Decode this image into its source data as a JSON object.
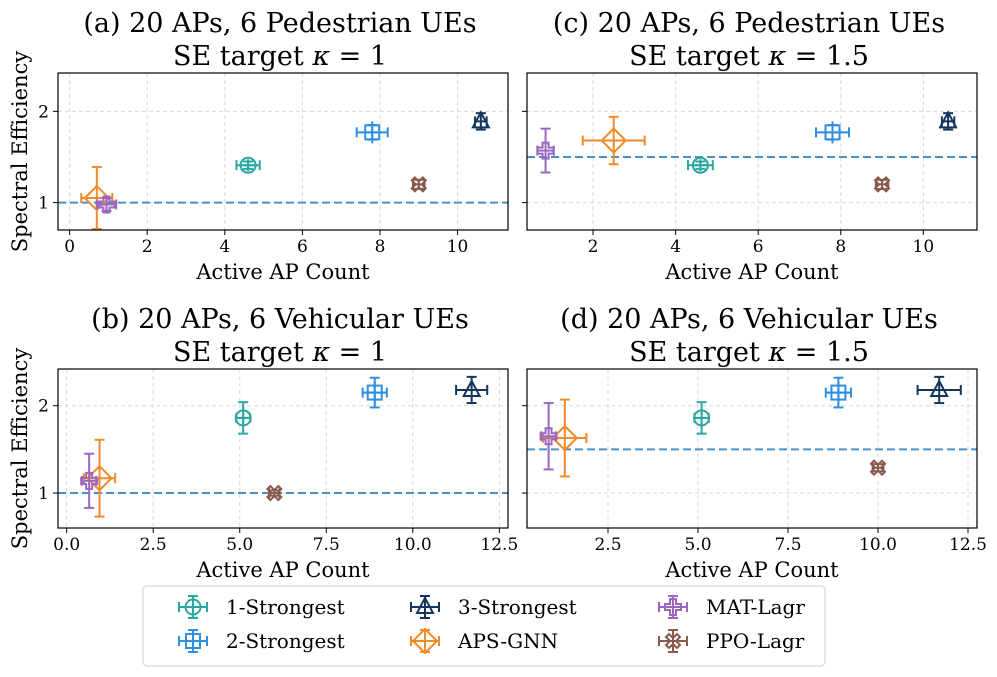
{
  "figure": {
    "legend": [
      {
        "name": "1-Strongest",
        "color": "#2ca6a0",
        "marker": "circle-plus-icon"
      },
      {
        "name": "2-Strongest",
        "color": "#2f8fe0",
        "marker": "square-plus-icon"
      },
      {
        "name": "3-Strongest",
        "color": "#14365e",
        "marker": "triangle-icon"
      },
      {
        "name": "APS-GNN",
        "color": "#f28a2a",
        "marker": "diamond-icon"
      },
      {
        "name": "MAT-Lagr",
        "color": "#9a68c0",
        "marker": "plus-icon"
      },
      {
        "name": "PPO-Lagr",
        "color": "#8b5a4e",
        "marker": "x-icon"
      }
    ]
  },
  "chart_data": [
    {
      "type": "scatter",
      "panel": "a",
      "title_line1": "(a) 20 APs, 6 Pedestrian UEs",
      "title_line2_prefix": "SE target ",
      "title_kappa": "κ",
      "title_line2_suffix": " = 1",
      "xlabel": "Active AP Count",
      "ylabel": "Spectral Efficiency",
      "xlim": [
        -0.3,
        11.3
      ],
      "ylim": [
        0.7,
        2.42
      ],
      "xticks": [
        0,
        2,
        4,
        6,
        8,
        10
      ],
      "xtick_labels": [
        "0",
        "2",
        "4",
        "6",
        "8",
        "10"
      ],
      "yticks": [
        1,
        2
      ],
      "ytick_labels": [
        "1",
        "2"
      ],
      "grid": true,
      "target": 1,
      "series": [
        {
          "name": "1-Strongest",
          "x": 4.6,
          "y": 1.41,
          "xerr": 0.3,
          "yerr": 0.04
        },
        {
          "name": "2-Strongest",
          "x": 7.8,
          "y": 1.77,
          "xerr": 0.4,
          "yerr": 0.08
        },
        {
          "name": "3-Strongest",
          "x": 10.6,
          "y": 1.89,
          "xerr": 0.15,
          "yerr": 0.09
        },
        {
          "name": "APS-GNN",
          "x": 0.7,
          "y": 1.05,
          "xerr": 0.4,
          "yerr": 0.34
        },
        {
          "name": "MAT-Lagr",
          "x": 0.95,
          "y": 0.98,
          "xerr": 0.25,
          "yerr": 0.07
        },
        {
          "name": "PPO-Lagr",
          "x": 9.0,
          "y": 1.2,
          "xerr": 0.15,
          "yerr": 0.05
        }
      ]
    },
    {
      "type": "scatter",
      "panel": "c",
      "title_line1": "(c) 20 APs, 6 Pedestrian UEs",
      "title_line2_prefix": "SE target ",
      "title_kappa": "κ",
      "title_line2_suffix": " = 1.5",
      "xlabel": "Active AP Count",
      "ylabel": "",
      "xlim": [
        0.4,
        11.3
      ],
      "ylim": [
        0.7,
        2.42
      ],
      "xticks": [
        2,
        4,
        6,
        8,
        10
      ],
      "xtick_labels": [
        "2",
        "4",
        "6",
        "8",
        "10"
      ],
      "yticks": [
        1,
        2
      ],
      "ytick_labels": [
        "",
        ""
      ],
      "grid": true,
      "target": 1.5,
      "series": [
        {
          "name": "1-Strongest",
          "x": 4.6,
          "y": 1.41,
          "xerr": 0.3,
          "yerr": 0.04
        },
        {
          "name": "2-Strongest",
          "x": 7.8,
          "y": 1.77,
          "xerr": 0.4,
          "yerr": 0.08
        },
        {
          "name": "3-Strongest",
          "x": 10.6,
          "y": 1.89,
          "xerr": 0.15,
          "yerr": 0.09
        },
        {
          "name": "APS-GNN",
          "x": 2.5,
          "y": 1.68,
          "xerr": 0.75,
          "yerr": 0.26
        },
        {
          "name": "MAT-Lagr",
          "x": 0.85,
          "y": 1.57,
          "xerr": 0.2,
          "yerr": 0.24
        },
        {
          "name": "PPO-Lagr",
          "x": 9.0,
          "y": 1.2,
          "xerr": 0.15,
          "yerr": 0.05
        }
      ]
    },
    {
      "type": "scatter",
      "panel": "b",
      "title_line1": "(b) 20 APs, 6 Vehicular UEs",
      "title_line2_prefix": "SE target ",
      "title_kappa": "κ",
      "title_line2_suffix": " = 1",
      "xlabel": "Active AP Count",
      "ylabel": "Spectral Efficiency",
      "xlim": [
        -0.25,
        12.75
      ],
      "ylim": [
        0.6,
        2.42
      ],
      "xticks": [
        0,
        2.5,
        5,
        7.5,
        10,
        12.5
      ],
      "xtick_labels": [
        "0.0",
        "2.5",
        "5.0",
        "7.5",
        "10.0",
        "12.5"
      ],
      "yticks": [
        1,
        2
      ],
      "ytick_labels": [
        "1",
        "2"
      ],
      "grid": true,
      "target": 1,
      "series": [
        {
          "name": "1-Strongest",
          "x": 5.1,
          "y": 1.86,
          "xerr": 0.2,
          "yerr": 0.18
        },
        {
          "name": "2-Strongest",
          "x": 8.9,
          "y": 2.15,
          "xerr": 0.35,
          "yerr": 0.17
        },
        {
          "name": "3-Strongest",
          "x": 11.7,
          "y": 2.18,
          "xerr": 0.45,
          "yerr": 0.15
        },
        {
          "name": "APS-GNN",
          "x": 0.95,
          "y": 1.17,
          "xerr": 0.45,
          "yerr": 0.44
        },
        {
          "name": "MAT-Lagr",
          "x": 0.65,
          "y": 1.14,
          "xerr": 0.2,
          "yerr": 0.31
        },
        {
          "name": "PPO-Lagr",
          "x": 6.0,
          "y": 1.0,
          "xerr": 0.15,
          "yerr": 0.03
        }
      ]
    },
    {
      "type": "scatter",
      "panel": "d",
      "title_line1": "(d) 20 APs, 6 Vehicular UEs",
      "title_line2_prefix": "SE target ",
      "title_kappa": "κ",
      "title_line2_suffix": " = 1.5",
      "xlabel": "Active AP Count",
      "ylabel": "",
      "xlim": [
        0.25,
        12.75
      ],
      "ylim": [
        0.6,
        2.42
      ],
      "xticks": [
        2.5,
        5,
        7.5,
        10,
        12.5
      ],
      "xtick_labels": [
        "2.5",
        "5.0",
        "7.5",
        "10.0",
        "12.5"
      ],
      "yticks": [
        1,
        2
      ],
      "ytick_labels": [
        "",
        ""
      ],
      "grid": true,
      "target": 1.5,
      "series": [
        {
          "name": "1-Strongest",
          "x": 5.1,
          "y": 1.86,
          "xerr": 0.2,
          "yerr": 0.18
        },
        {
          "name": "2-Strongest",
          "x": 8.9,
          "y": 2.15,
          "xerr": 0.35,
          "yerr": 0.17
        },
        {
          "name": "3-Strongest",
          "x": 11.7,
          "y": 2.18,
          "xerr": 0.6,
          "yerr": 0.15
        },
        {
          "name": "APS-GNN",
          "x": 1.3,
          "y": 1.63,
          "xerr": 0.6,
          "yerr": 0.44
        },
        {
          "name": "MAT-Lagr",
          "x": 0.85,
          "y": 1.65,
          "xerr": 0.2,
          "yerr": 0.38
        },
        {
          "name": "PPO-Lagr",
          "x": 10.0,
          "y": 1.29,
          "xerr": 0.15,
          "yerr": 0.04
        }
      ]
    }
  ]
}
